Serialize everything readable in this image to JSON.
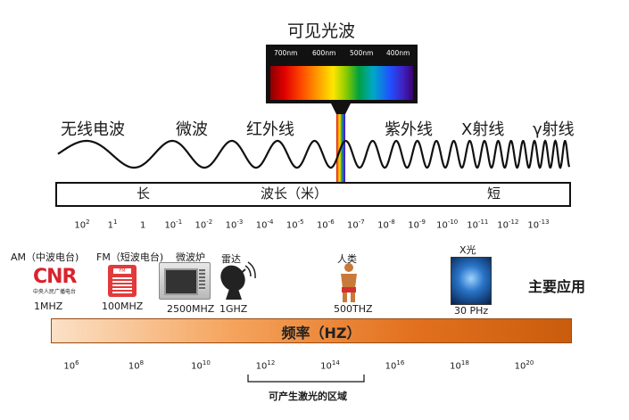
{
  "visible": {
    "title": "可见光波",
    "nm_labels": [
      "700nm",
      "600nm",
      "500nm",
      "400nm"
    ]
  },
  "bands": [
    "无线电波",
    "微波",
    "红外线",
    "紫外线",
    "X射线",
    "γ射线"
  ],
  "wavelength_axis": {
    "long": "长",
    "middle": "波长（米）",
    "short": "短",
    "ticks": [
      {
        "base": "10",
        "exp": "2"
      },
      {
        "base": "1",
        "exp": "1"
      },
      {
        "base": "1",
        "exp": ""
      },
      {
        "base": "10",
        "exp": "-1"
      },
      {
        "base": "10",
        "exp": "-2"
      },
      {
        "base": "10",
        "exp": "-3"
      },
      {
        "base": "10",
        "exp": "-4"
      },
      {
        "base": "10",
        "exp": "-5"
      },
      {
        "base": "10",
        "exp": "-6"
      },
      {
        "base": "10",
        "exp": "-7"
      },
      {
        "base": "10",
        "exp": "-8"
      },
      {
        "base": "10",
        "exp": "-9"
      },
      {
        "base": "10",
        "exp": "-10"
      },
      {
        "base": "10",
        "exp": "-11"
      },
      {
        "base": "10",
        "exp": "-12"
      },
      {
        "base": "10",
        "exp": "-13"
      }
    ]
  },
  "applications": {
    "am_label": "AM（中波电台)",
    "fm_label": "FM（短波电台)",
    "microwave_label": "微波炉",
    "radar_label": "雷达",
    "human_label": "人类",
    "xray_label": "X光",
    "cnr_logo": "CNR",
    "cnr_sub": "中央人民广播电台",
    "fm_icon_text": "FM",
    "am_freq": "1MHZ",
    "fm_freq": "100MHZ",
    "microwave_freq": "2500MHZ",
    "radar_freq": "1GHZ",
    "human_freq": "500THZ",
    "xray_freq": "30 PHz",
    "main_apps": "主要应用"
  },
  "frequency": {
    "label": "频率（HZ）",
    "ticks": [
      {
        "base": "10",
        "exp": "6"
      },
      {
        "base": "10",
        "exp": "8"
      },
      {
        "base": "10",
        "exp": "10"
      },
      {
        "base": "10",
        "exp": "12"
      },
      {
        "base": "10",
        "exp": "14"
      },
      {
        "base": "10",
        "exp": "16"
      },
      {
        "base": "10",
        "exp": "18"
      },
      {
        "base": "10",
        "exp": "20"
      }
    ],
    "laser_region": "可产生激光的区域"
  },
  "colors": {
    "bar_start": "#fbe1c6",
    "bar_end": "#c95d0d",
    "cnr_red": "#d9232d"
  }
}
